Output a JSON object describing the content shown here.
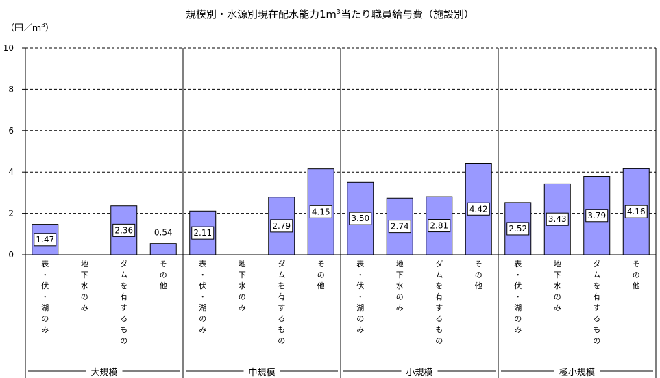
{
  "chart_data": {
    "type": "bar",
    "title": {
      "prefix": "規模別・水源別現在配水能力1ｍ",
      "sup": "3",
      "suffix": "当たり職員給与費（施設別）"
    },
    "y_unit": {
      "prefix": "（円／ｍ",
      "sup": "3",
      "suffix": "）"
    },
    "ylim": [
      0,
      10
    ],
    "yticks": [
      "0",
      "2",
      "4",
      "6",
      "8",
      "10"
    ],
    "grid": "dashed-horizontal",
    "legend": "none",
    "bar_color": "#9999ff",
    "categories": [
      "表・伏・湖のみ",
      "地下水のみ",
      "ダムを有するもの",
      "その他"
    ],
    "groups": [
      {
        "name": "大規模",
        "values": [
          1.47,
          null,
          2.36,
          0.54
        ],
        "labels": [
          "1.47",
          "",
          "2.36",
          "0.54"
        ]
      },
      {
        "name": "中規模",
        "values": [
          2.11,
          null,
          2.79,
          4.15
        ],
        "labels": [
          "2.11",
          "",
          "2.79",
          "4.15"
        ]
      },
      {
        "name": "小規模",
        "values": [
          3.5,
          2.74,
          2.81,
          4.42
        ],
        "labels": [
          "3.50",
          "2.74",
          "2.81",
          "4.42"
        ]
      },
      {
        "name": "極小規模",
        "values": [
          2.52,
          3.43,
          3.79,
          4.16
        ],
        "labels": [
          "2.52",
          "3.43",
          "3.79",
          "4.16"
        ]
      }
    ]
  }
}
